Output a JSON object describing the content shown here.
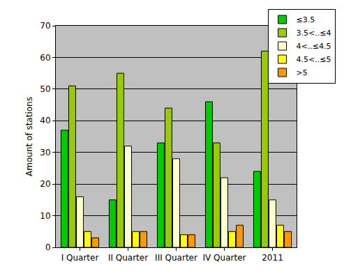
{
  "chart_data": {
    "type": "bar",
    "categories": [
      "I Quarter",
      "II Quarter",
      "III Quarter",
      "IV Quarter",
      "2011"
    ],
    "series": [
      {
        "name": "≤3.5",
        "color": "#00cc00",
        "values": [
          37,
          15,
          33,
          46,
          24
        ]
      },
      {
        "name": "3.5<..≤4",
        "color": "#99cc00",
        "values": [
          51,
          55,
          44,
          33,
          62
        ]
      },
      {
        "name": "4<..≤4.5",
        "color": "#ffffcc",
        "values": [
          16,
          32,
          28,
          22,
          15
        ]
      },
      {
        "name": "4.5<..≤5",
        "color": "#ffff00",
        "values": [
          5,
          5,
          4,
          5,
          7
        ]
      },
      {
        "name": ">5",
        "color": "#ff9900",
        "values": [
          3,
          5,
          4,
          7,
          5
        ]
      }
    ],
    "y_label": "Amount of stations",
    "ylim": [
      0,
      70
    ],
    "yticks": [
      0,
      10,
      20,
      30,
      40,
      50,
      60,
      70
    ],
    "grid": true,
    "legend": "top right"
  }
}
